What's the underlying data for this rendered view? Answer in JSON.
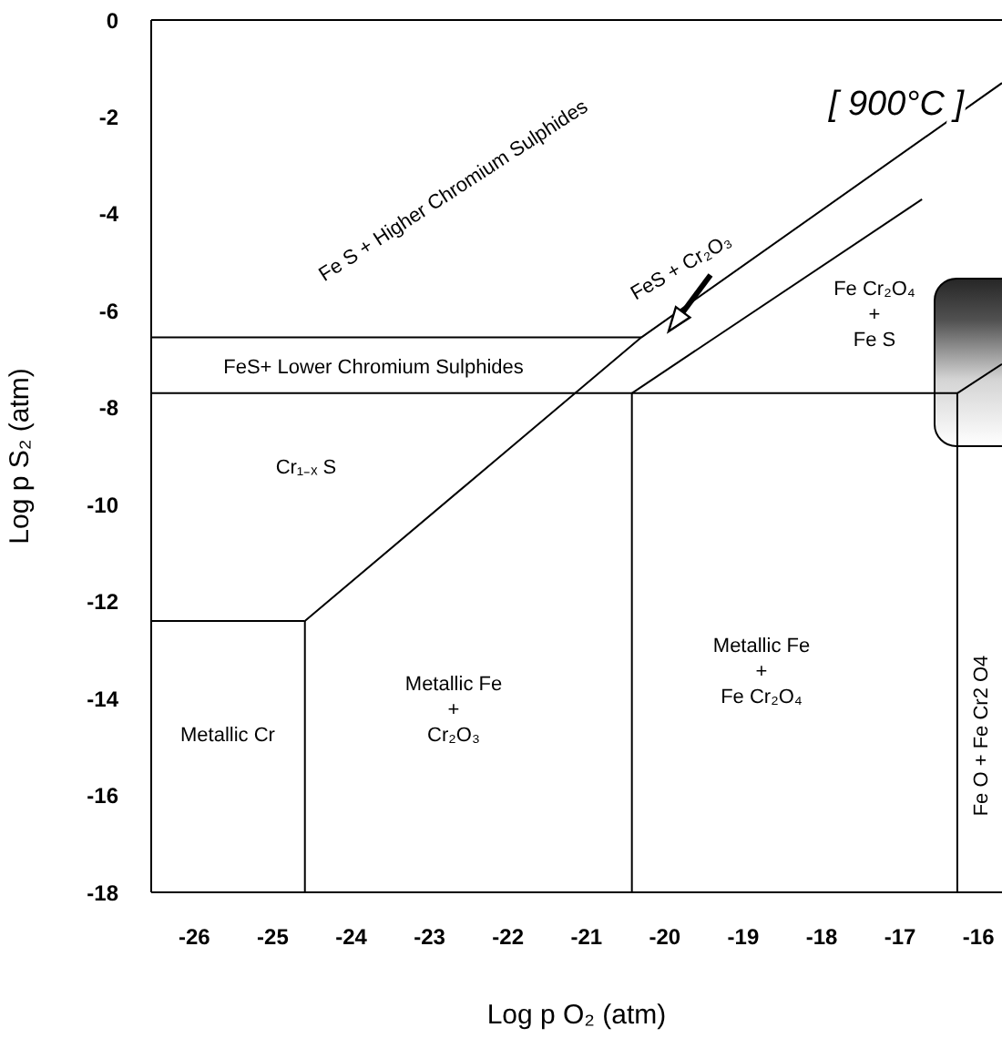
{
  "chart_data": {
    "type": "line",
    "xlabel": "Log p O₂ (atm)",
    "ylabel": "Log p S₂ (atm)",
    "xlim": [
      -26.55,
      -15.7
    ],
    "ylim": [
      -18,
      0
    ],
    "xticks": [
      -26,
      -25,
      -24,
      -23,
      -22,
      -21,
      -20,
      -19,
      -18,
      -17,
      -16
    ],
    "yticks": [
      0,
      -2,
      -4,
      -6,
      -8,
      -10,
      -12,
      -14,
      -16,
      -18
    ],
    "grid": false,
    "legend": false,
    "marker": "none",
    "line_style": "solid",
    "series": [
      {
        "color": "#000000",
        "x": [
          -26.55,
          -20.3
        ],
        "values": [
          -6.55,
          -6.55
        ]
      },
      {
        "color": "#000000",
        "x": [
          -26.55,
          -16.27
        ],
        "values": [
          -7.7,
          -7.7
        ]
      },
      {
        "color": "#000000",
        "x": [
          -26.55,
          -24.59
        ],
        "values": [
          -12.4,
          -12.4
        ]
      },
      {
        "color": "#000000",
        "x": [
          -24.59,
          -20.3,
          -15.7
        ],
        "values": [
          -12.4,
          -6.55,
          -1.3
        ]
      },
      {
        "color": "#000000",
        "x": [
          -20.42,
          -16.72
        ],
        "values": [
          -7.7,
          -3.7
        ]
      },
      {
        "color": "#000000",
        "x": [
          -24.59,
          -24.59
        ],
        "values": [
          -12.4,
          -18
        ]
      },
      {
        "color": "#000000",
        "x": [
          -20.42,
          -20.42
        ],
        "values": [
          -7.7,
          -18
        ]
      },
      {
        "color": "#000000",
        "x": [
          -16.27,
          -16.27
        ],
        "values": [
          -7.7,
          -18
        ]
      },
      {
        "color": "#000000",
        "x": [
          -16.27,
          -15.7
        ],
        "values": [
          -7.7,
          -7.1
        ]
      }
    ],
    "annotations": [
      "Fe S + Higher Chromium Sulphides",
      "FeS + Cr₂O₃",
      "FeS+ Lower Chromium Sulphides",
      "Cr₁₋ₓ S",
      "Metallic Cr",
      "Metallic Fe\n+\nCr₂O₃",
      "Metallic Fe\n+\nFe Cr₂O₄",
      "Fe Cr₂O₄\n+\nFe S",
      "Fe O + Fe Cr2 O4",
      "[ 900°C ]"
    ]
  }
}
